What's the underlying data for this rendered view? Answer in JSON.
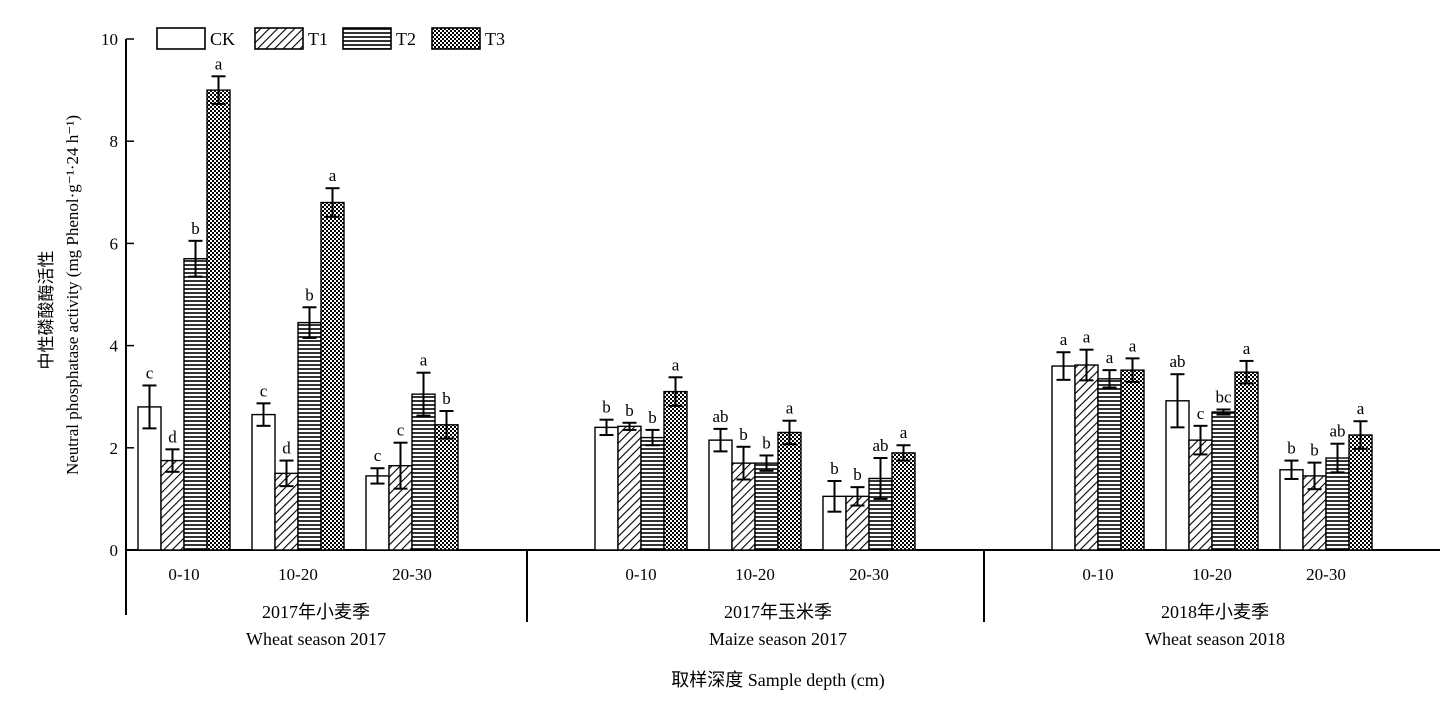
{
  "chart_data": {
    "type": "bar",
    "ylabel_cn": "中性磷酸酶活性",
    "ylabel_en": "Neutral phosphatase activity (mg Phenol·g⁻¹·24 h⁻¹)",
    "xlabel": "取样深度 Sample depth (cm)",
    "ylim": [
      0,
      10
    ],
    "yticks": [
      "0",
      "2",
      "4",
      "6",
      "8",
      "10"
    ],
    "grid": false,
    "legend_position": "top-left",
    "series_names": [
      "CK",
      "T1",
      "T2",
      "T3"
    ],
    "depths": [
      "0-10",
      "10-20",
      "20-30"
    ],
    "groups": [
      {
        "label_cn": "2017年小麦季",
        "label_en": "Wheat season 2017",
        "clusters": [
          {
            "depth": "0-10",
            "values": [
              2.8,
              1.75,
              5.7,
              9.0
            ],
            "errors": [
              0.42,
              0.22,
              0.35,
              0.27
            ],
            "letters": [
              "c",
              "d",
              "b",
              "a"
            ]
          },
          {
            "depth": "10-20",
            "values": [
              2.65,
              1.5,
              4.45,
              6.8
            ],
            "errors": [
              0.22,
              0.25,
              0.3,
              0.28
            ],
            "letters": [
              "c",
              "d",
              "b",
              "a"
            ]
          },
          {
            "depth": "20-30",
            "values": [
              1.45,
              1.65,
              3.05,
              2.45
            ],
            "errors": [
              0.15,
              0.45,
              0.42,
              0.27
            ],
            "letters": [
              "c",
              "c",
              "a",
              "b"
            ]
          }
        ]
      },
      {
        "label_cn": "2017年玉米季",
        "label_en": "Maize season 2017",
        "clusters": [
          {
            "depth": "0-10",
            "values": [
              2.4,
              2.42,
              2.2,
              3.1
            ],
            "errors": [
              0.15,
              0.07,
              0.15,
              0.28
            ],
            "letters": [
              "b",
              "b",
              "b",
              "a"
            ]
          },
          {
            "depth": "10-20",
            "values": [
              2.15,
              1.7,
              1.7,
              2.3
            ],
            "errors": [
              0.22,
              0.32,
              0.15,
              0.23
            ],
            "letters": [
              "ab",
              "b",
              "b",
              "a"
            ]
          },
          {
            "depth": "20-30",
            "values": [
              1.05,
              1.05,
              1.4,
              1.9
            ],
            "errors": [
              0.3,
              0.18,
              0.4,
              0.15
            ],
            "letters": [
              "b",
              "b",
              "ab",
              "a"
            ]
          }
        ]
      },
      {
        "label_cn": "2018年小麦季",
        "label_en": "Wheat season 2018",
        "clusters": [
          {
            "depth": "0-10",
            "values": [
              3.6,
              3.62,
              3.35,
              3.52
            ],
            "errors": [
              0.27,
              0.3,
              0.17,
              0.23
            ],
            "letters": [
              "a",
              "a",
              "a",
              "a"
            ]
          },
          {
            "depth": "10-20",
            "values": [
              2.92,
              2.15,
              2.7,
              3.48
            ],
            "errors": [
              0.52,
              0.28,
              0.05,
              0.22
            ],
            "letters": [
              "ab",
              "c",
              "bc",
              "a"
            ]
          },
          {
            "depth": "20-30",
            "values": [
              1.57,
              1.45,
              1.8,
              2.25
            ],
            "errors": [
              0.18,
              0.26,
              0.28,
              0.27
            ],
            "letters": [
              "b",
              "b",
              "ab",
              "a"
            ]
          }
        ]
      }
    ]
  }
}
